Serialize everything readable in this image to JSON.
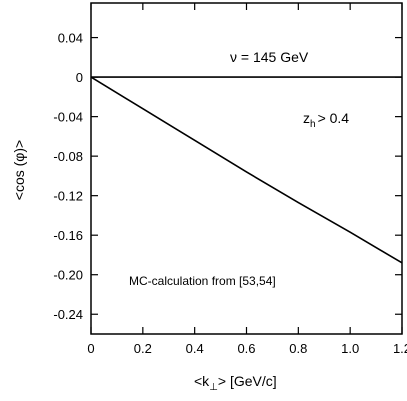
{
  "chart_data": {
    "type": "line",
    "xlabel_main": "<k",
    "xlabel_sub": "⊥",
    "xlabel_rest": "> [GeV/c]",
    "ylabel": "<cos (φ)>",
    "xlim": [
      0,
      1.2
    ],
    "ylim": [
      -0.26,
      0.075
    ],
    "x_ticks": [
      0,
      0.2,
      0.4,
      0.6,
      0.8,
      1.0,
      1.2
    ],
    "x_tick_labels": [
      "0",
      "0.2",
      "0.4",
      "0.6",
      "0.8",
      "1.0",
      "1.2"
    ],
    "y_ticks": [
      0.04,
      0,
      -0.04,
      -0.08,
      -0.12,
      -0.16,
      -0.2,
      -0.24
    ],
    "y_tick_labels": [
      "0.04",
      "0",
      "-0.04",
      "-0.08",
      "-0.12",
      "-0.16",
      "-0.20",
      "-0.24"
    ],
    "annotations": {
      "energy": "ν = 145 GeV",
      "zh_main": "z",
      "zh_sub": "h",
      "zh_rest": "> 0.4",
      "source": "MC-calculation from [53,54]"
    },
    "series": [
      {
        "x": [
          0,
          1.2
        ],
        "y": [
          0,
          0
        ]
      },
      {
        "x": [
          0,
          0.2,
          0.4,
          0.6,
          0.8,
          1.0,
          1.2
        ],
        "y": [
          0,
          -0.032,
          -0.064,
          -0.096,
          -0.127,
          -0.157,
          -0.188
        ]
      }
    ]
  }
}
